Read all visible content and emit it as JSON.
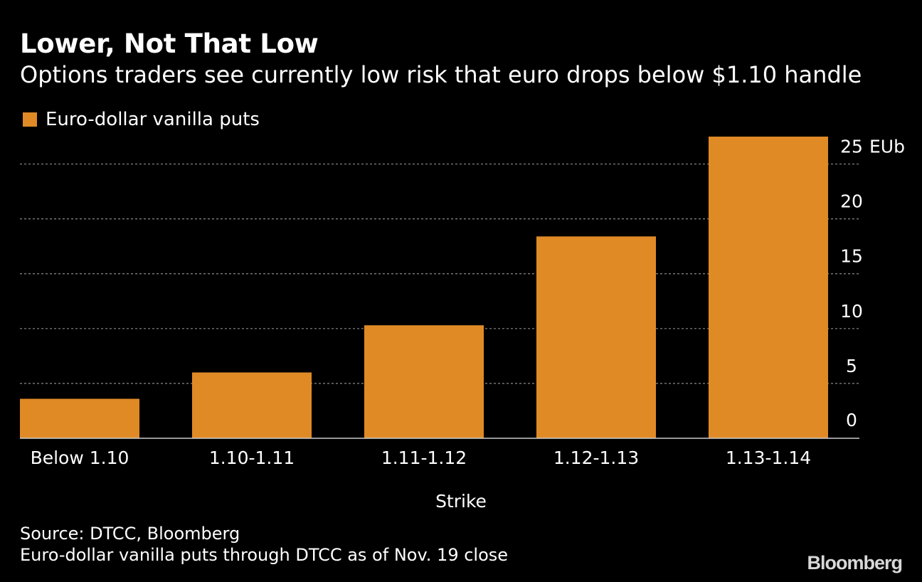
{
  "header": {
    "title": "Lower, Not That Low",
    "subtitle": "Options traders see currently low risk that euro drops below $1.10 handle"
  },
  "footer": {
    "source": "Source: DTCC, Bloomberg",
    "note": "Euro-dollar vanilla puts through DTCC as of Nov. 19 close",
    "logo": "Bloomberg"
  },
  "colors": {
    "background": "#000000",
    "bar": "#e08a26",
    "grid": "#8a8a8a",
    "text": "#ffffff"
  },
  "chart_data": {
    "type": "bar",
    "title": "Lower, Not That Low",
    "subtitle": "Options traders see currently low risk that euro drops below $1.10 handle",
    "xlabel": "Strike",
    "ylabel": "",
    "unit_label": "EUb",
    "categories": [
      "Below 1.10",
      "1.10-1.11",
      "1.11-1.12",
      "1.12-1.13",
      "1.13-1.14"
    ],
    "series": [
      {
        "name": "Euro-dollar vanilla puts",
        "values": [
          3.6,
          6.0,
          10.3,
          18.4,
          27.5
        ]
      }
    ],
    "ylim": [
      0,
      27.5
    ],
    "yticks": [
      0,
      5,
      10,
      15,
      20,
      25
    ],
    "ytick_labels": [
      "0",
      "5",
      "10",
      "15",
      "20",
      "25"
    ],
    "grid": true,
    "legend": "top-left"
  }
}
